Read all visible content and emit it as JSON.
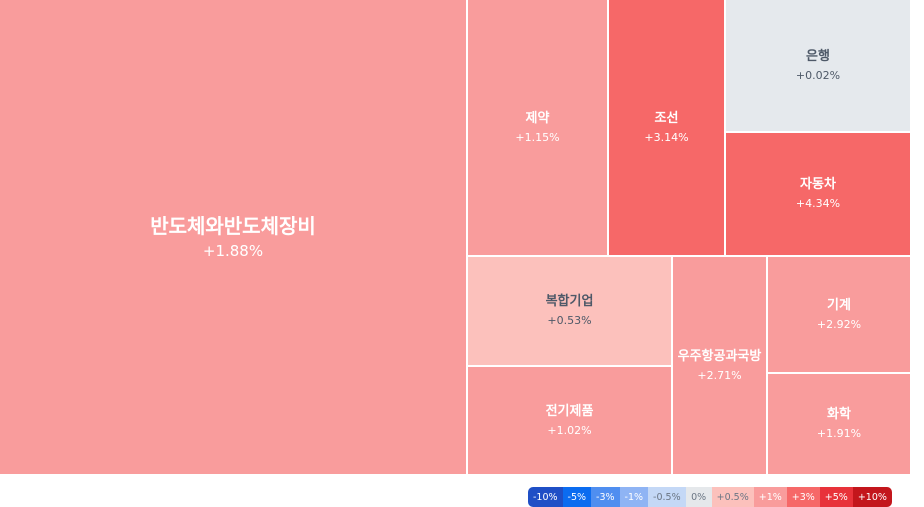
{
  "chart_data": {
    "type": "treemap",
    "items": [
      {
        "name": "반도체와반도체장비",
        "change": "+1.88%",
        "value": 1.88,
        "color": "#f99c9c"
      },
      {
        "name": "제약",
        "change": "+1.15%",
        "value": 1.15,
        "color": "#f99c9c"
      },
      {
        "name": "조선",
        "change": "+3.14%",
        "value": 3.14,
        "color": "#f66868"
      },
      {
        "name": "은행",
        "change": "+0.02%",
        "value": 0.02,
        "color": "#e5e9ed"
      },
      {
        "name": "자동차",
        "change": "+4.34%",
        "value": 4.34,
        "color": "#f66868"
      },
      {
        "name": "복합기업",
        "change": "+0.53%",
        "value": 0.53,
        "color": "#fcc1bc"
      },
      {
        "name": "전기제품",
        "change": "+1.02%",
        "value": 1.02,
        "color": "#f99c9c"
      },
      {
        "name": "우주항공과국방",
        "change": "+2.71%",
        "value": 2.71,
        "color": "#f99c9c"
      },
      {
        "name": "기계",
        "change": "+2.92%",
        "value": 2.92,
        "color": "#f99c9c"
      },
      {
        "name": "화학",
        "change": "+1.91%",
        "value": 1.91,
        "color": "#f99c9c"
      }
    ],
    "legend": [
      {
        "label": "-10%",
        "color": "#1f4fc6"
      },
      {
        "label": "-5%",
        "color": "#0b6cf0"
      },
      {
        "label": "-3%",
        "color": "#4f8ef0"
      },
      {
        "label": "-1%",
        "color": "#8fb4f4"
      },
      {
        "label": "-0.5%",
        "color": "#c4d8f6"
      },
      {
        "label": "0%",
        "color": "#e5e8eb"
      },
      {
        "label": "+0.5%",
        "color": "#fcc1bc"
      },
      {
        "label": "+1%",
        "color": "#f99c9c"
      },
      {
        "label": "+3%",
        "color": "#f66868"
      },
      {
        "label": "+5%",
        "color": "#e8323a"
      },
      {
        "label": "+10%",
        "color": "#c3161c"
      }
    ]
  }
}
